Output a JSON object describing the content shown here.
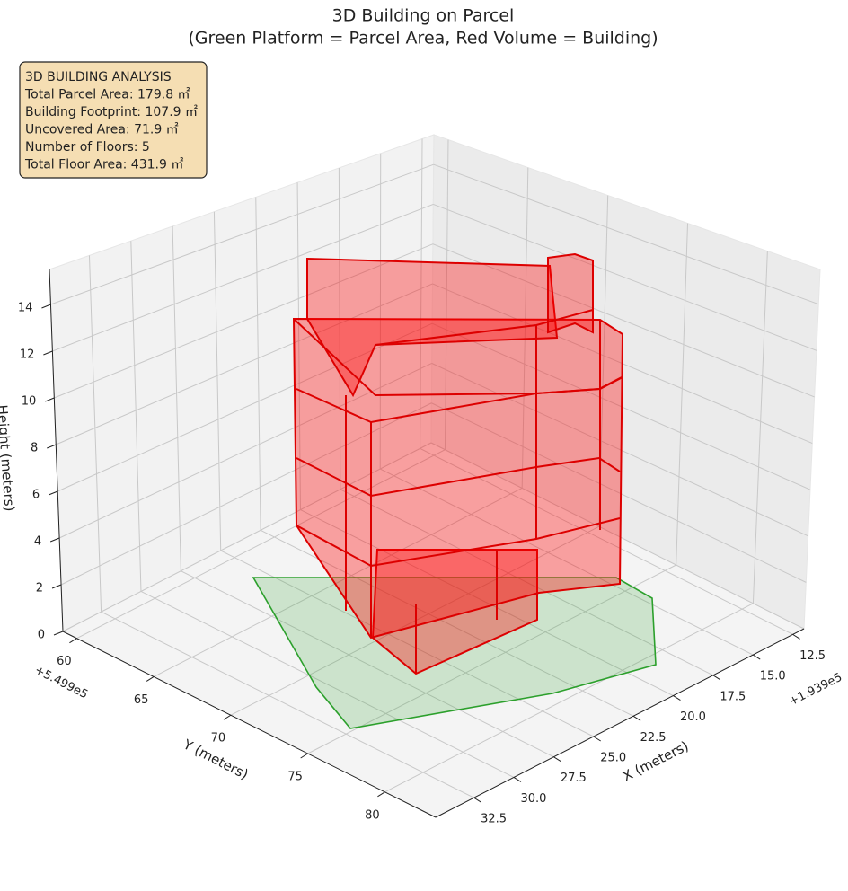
{
  "chart_data": {
    "type": "surface3d",
    "title": "3D Building on Parcel",
    "subtitle": "(Green Platform = Parcel Area, Red Volume = Building)",
    "annotation": [
      "3D BUILDING ANALYSIS",
      "Total Parcel Area: 179.8 ㎡",
      "Building Footprint: 107.9 ㎡",
      "Uncovered Area: 71.9 ㎡",
      "Number of Floors: 5",
      "Total Floor Area: 431.9 ㎡"
    ],
    "xlabel": "X (meters)",
    "ylabel": "Y (meters)",
    "zlabel": "Height (meters)",
    "x_offset": "+1.939e5",
    "y_offset": "+5.499e5",
    "xlim": [
      11.8,
      34.9
    ],
    "xticks": [
      12.5,
      {
        "value": 15,
        "label": "15.0"
      },
      17.5,
      {
        "value": 20,
        "label": "20.0"
      },
      22.5,
      {
        "value": 25,
        "label": "25.0"
      },
      27.5,
      {
        "value": 30,
        "label": "30.0"
      },
      32.5
    ],
    "ylim": [
      59.1,
      83.3
    ],
    "yticks": [
      60,
      65,
      70,
      75,
      80
    ],
    "zlim": [
      0,
      15.5
    ],
    "zticks": [
      0,
      2,
      4,
      6,
      8,
      10,
      12,
      14
    ],
    "grid": true,
    "parcel_color": "#2ca02c",
    "building_color": "#ff0000"
  }
}
